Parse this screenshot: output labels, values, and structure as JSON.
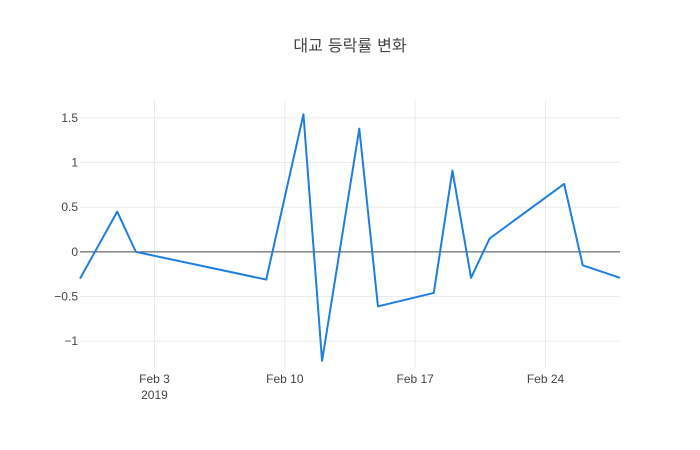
{
  "chart_data": {
    "type": "line",
    "title": "대교 등락률 변화",
    "xlabel": "",
    "ylabel": "",
    "xlim": [
      "2019-01-30",
      "2019-02-28"
    ],
    "ylim": [
      -1.3,
      1.7
    ],
    "grid": true,
    "x_ticks": [
      {
        "date": "2019-02-03",
        "label": "Feb 3",
        "sublabel": "2019"
      },
      {
        "date": "2019-02-10",
        "label": "Feb 10",
        "sublabel": ""
      },
      {
        "date": "2019-02-17",
        "label": "Feb 17",
        "sublabel": ""
      },
      {
        "date": "2019-02-24",
        "label": "Feb 24",
        "sublabel": ""
      }
    ],
    "y_ticks": [
      {
        "value": 1.5,
        "label": "1.5"
      },
      {
        "value": 1,
        "label": "1"
      },
      {
        "value": 0.5,
        "label": "0.5"
      },
      {
        "value": 0,
        "label": "0"
      },
      {
        "value": -0.5,
        "label": "−0.5"
      },
      {
        "value": -1,
        "label": "−1"
      }
    ],
    "series": [
      {
        "color": "#1f7fdc",
        "x": [
          "2019-01-30",
          "2019-02-01",
          "2019-02-02",
          "2019-02-09",
          "2019-02-11",
          "2019-02-12",
          "2019-02-14",
          "2019-02-15",
          "2019-02-18",
          "2019-02-19",
          "2019-02-20",
          "2019-02-21",
          "2019-02-25",
          "2019-02-26",
          "2019-02-28"
        ],
        "y": [
          -0.3,
          0.45,
          0.0,
          -0.31,
          1.54,
          -1.22,
          1.38,
          -0.61,
          -0.46,
          0.91,
          -0.29,
          0.15,
          0.76,
          -0.15,
          -0.29
        ]
      }
    ]
  }
}
